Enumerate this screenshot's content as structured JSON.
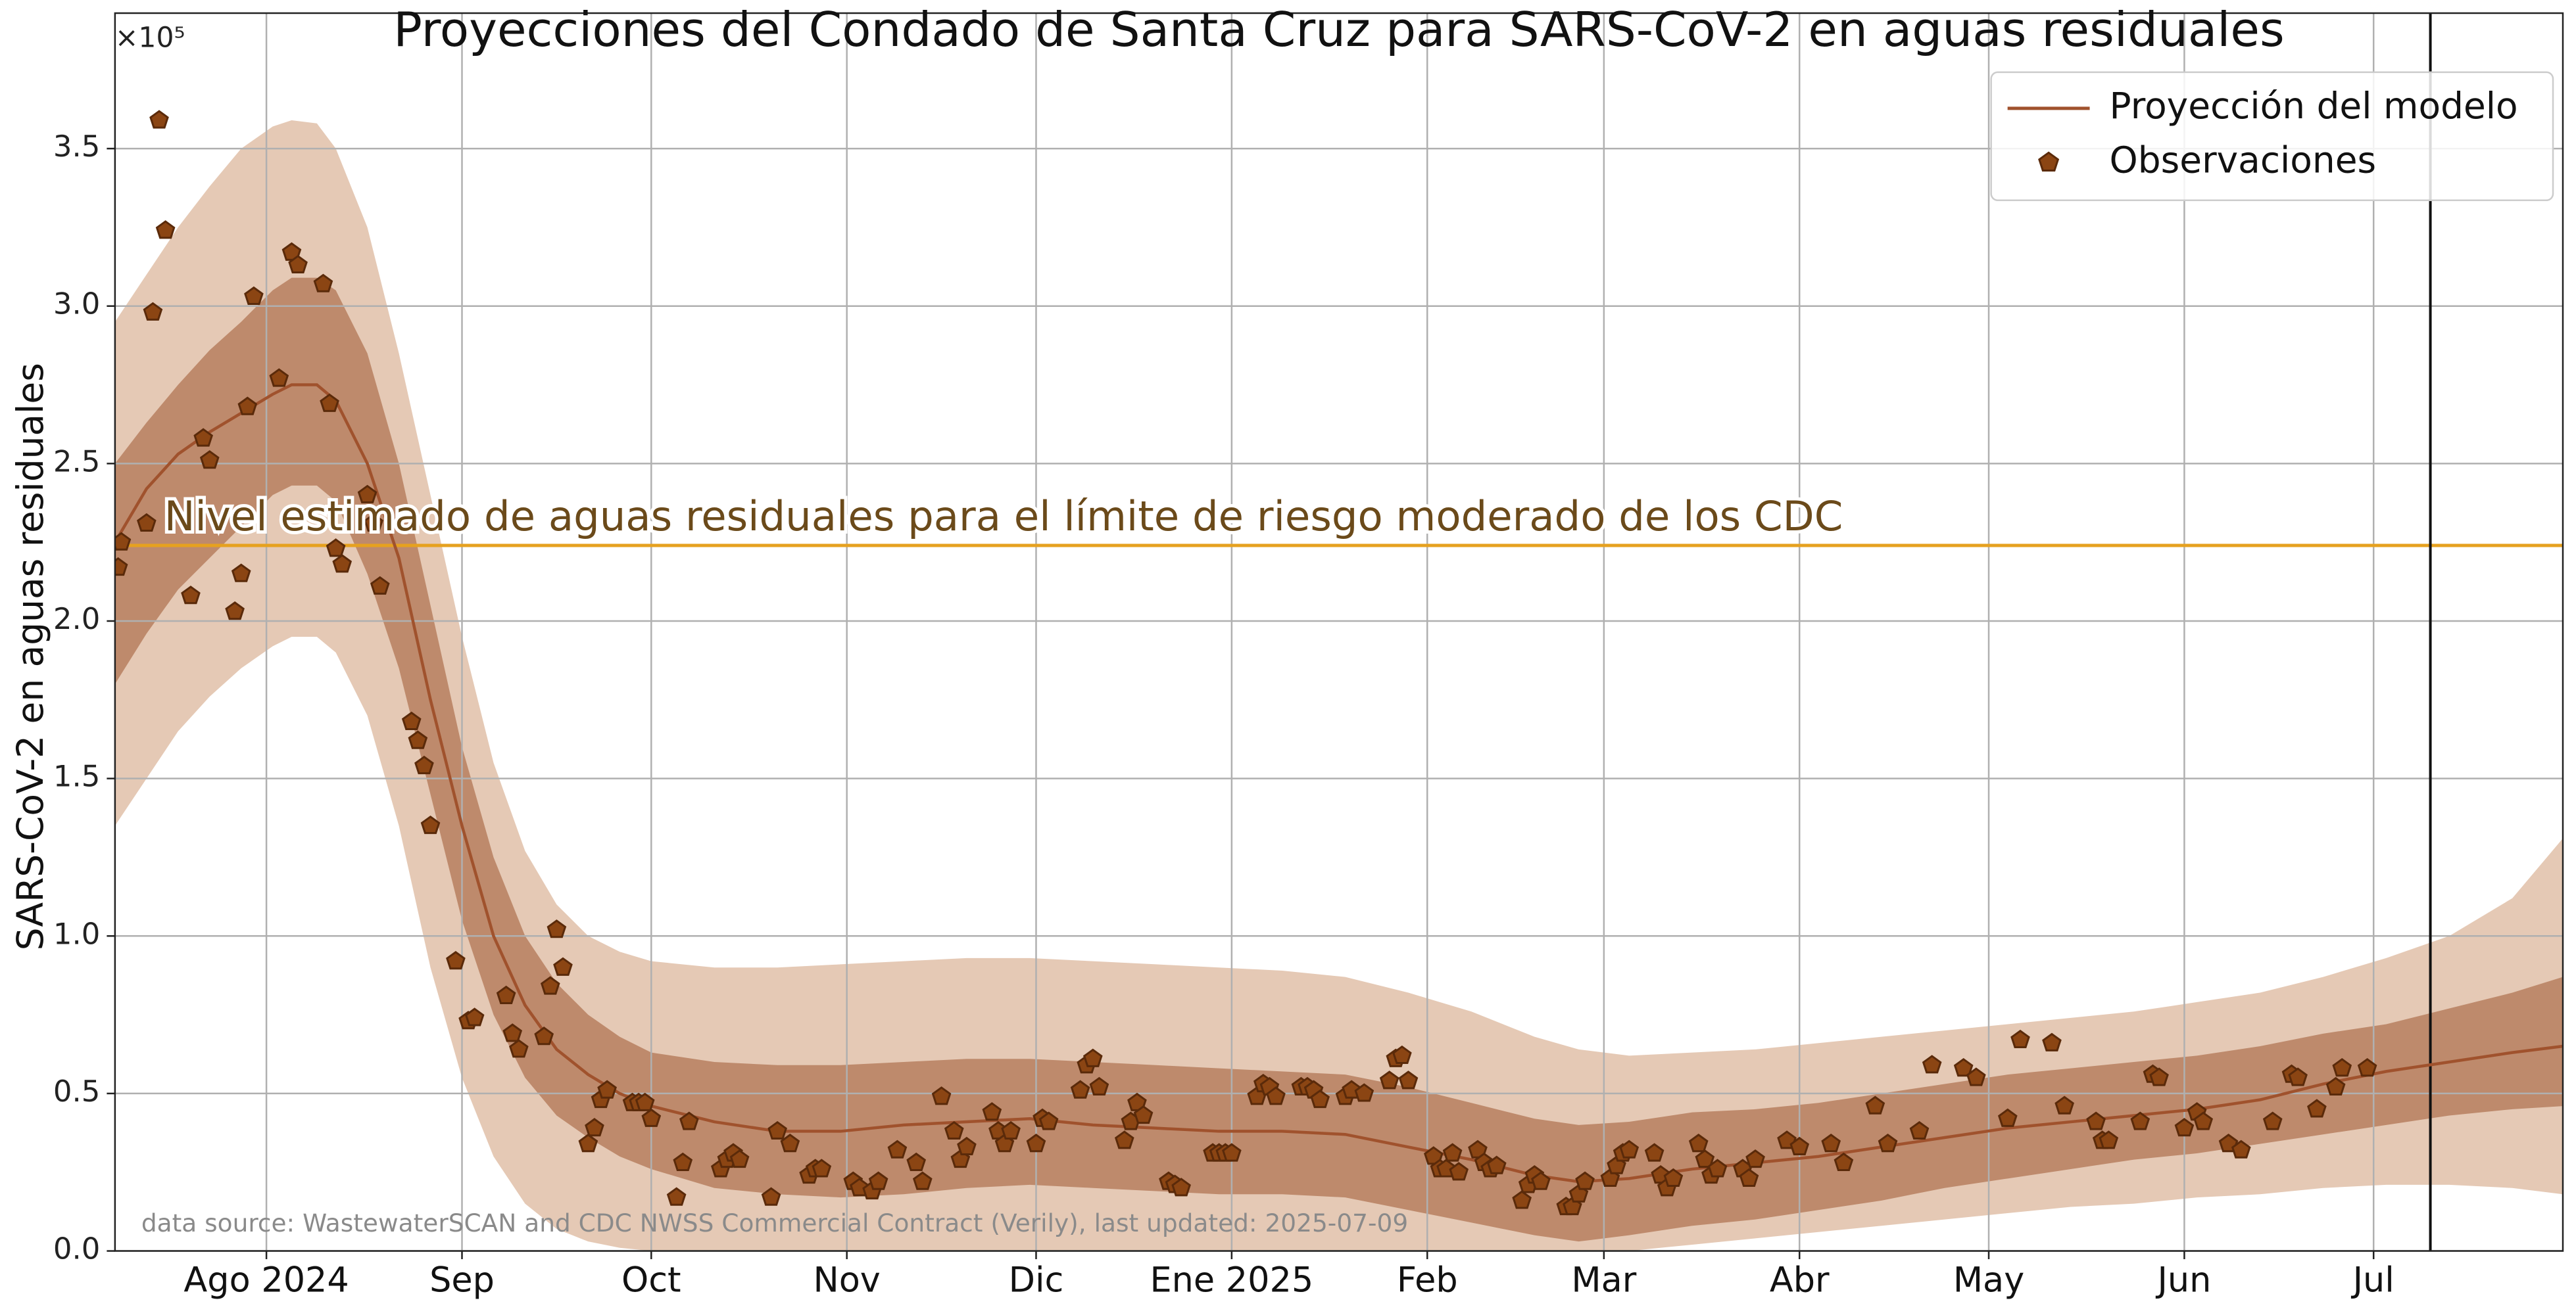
{
  "chart_data": {
    "type": "line",
    "title": "Proyecciones del Condado de Santa Cruz para SARS-CoV-2 en aguas residuales",
    "y_label": "SARS-CoV-2 en aguas residuales",
    "y_offset_label": "×10⁵",
    "annotation": "data source: WastewaterSCAN and CDC NWSS Commercial Contract (Verily), last updated: 2025-07-09",
    "xlim": [
      0,
      388
    ],
    "xticks": [
      {
        "value": 24,
        "label": "Ago 2024"
      },
      {
        "value": 55,
        "label": "Sep"
      },
      {
        "value": 85,
        "label": "Oct"
      },
      {
        "value": 116,
        "label": "Nov"
      },
      {
        "value": 146,
        "label": "Dic"
      },
      {
        "value": 177,
        "label": "Ene 2025"
      },
      {
        "value": 208,
        "label": "Feb"
      },
      {
        "value": 236,
        "label": "Mar"
      },
      {
        "value": 267,
        "label": "Abr"
      },
      {
        "value": 297,
        "label": "May"
      },
      {
        "value": 328,
        "label": "Jun"
      },
      {
        "value": 358,
        "label": "Jul"
      }
    ],
    "ylim": [
      0,
      3.93
    ],
    "yticks": [
      {
        "value": 0,
        "label": "0.0"
      },
      0.5,
      {
        "value": 1,
        "label": "1.0"
      },
      1.5,
      {
        "value": 2,
        "label": "2.0"
      },
      2.5,
      {
        "value": 3,
        "label": "3.0"
      },
      3.5
    ],
    "grid": true,
    "legend": "upper right",
    "threshold": {
      "value": 2.24,
      "label": "Nivel estimado de aguas residuales para el límite de riesgo moderado de los CDC",
      "color": "#e6a11f",
      "text_color": "#6b4a1a"
    },
    "vline": {
      "x": 367,
      "color": "#111111"
    },
    "bands": [
      {
        "color": "#e5c9b5",
        "upper": [
          2.95,
          3.1,
          3.25,
          3.38,
          3.5,
          3.57,
          3.59,
          3.58,
          3.5,
          3.25,
          2.85,
          2.4,
          1.95,
          1.55,
          1.27,
          1.1,
          1.0,
          0.95,
          0.92,
          0.9,
          0.9,
          0.91,
          0.92,
          0.93,
          0.93,
          0.92,
          0.91,
          0.9,
          0.89,
          0.87,
          0.82,
          0.76,
          0.68,
          0.64,
          0.62,
          0.63,
          0.64,
          0.66,
          0.68,
          0.7,
          0.72,
          0.74,
          0.76,
          0.79,
          0.82,
          0.87,
          0.93,
          1.0,
          1.12,
          1.31
        ],
        "lower": [
          1.35,
          1.5,
          1.65,
          1.76,
          1.85,
          1.92,
          1.95,
          1.95,
          1.9,
          1.7,
          1.35,
          0.9,
          0.55,
          0.3,
          0.15,
          0.07,
          0.03,
          0.01,
          0,
          0,
          0,
          0,
          0,
          0,
          0,
          0,
          0,
          0,
          0,
          0,
          0,
          0,
          0,
          0,
          0,
          0.02,
          0.04,
          0.06,
          0.08,
          0.1,
          0.12,
          0.14,
          0.15,
          0.17,
          0.18,
          0.2,
          0.21,
          0.21,
          0.2,
          0.18
        ]
      },
      {
        "color": "#be8a6c",
        "upper": [
          2.5,
          2.63,
          2.75,
          2.86,
          2.95,
          3.05,
          3.09,
          3.09,
          3.05,
          2.85,
          2.5,
          2.05,
          1.6,
          1.25,
          1.0,
          0.85,
          0.75,
          0.68,
          0.63,
          0.6,
          0.59,
          0.59,
          0.6,
          0.61,
          0.61,
          0.6,
          0.59,
          0.58,
          0.57,
          0.56,
          0.52,
          0.47,
          0.42,
          0.4,
          0.41,
          0.44,
          0.45,
          0.47,
          0.5,
          0.53,
          0.56,
          0.58,
          0.6,
          0.62,
          0.65,
          0.69,
          0.72,
          0.77,
          0.82,
          0.87
        ],
        "lower": [
          1.8,
          1.96,
          2.1,
          2.2,
          2.3,
          2.4,
          2.43,
          2.43,
          2.38,
          2.15,
          1.85,
          1.45,
          1.05,
          0.75,
          0.55,
          0.43,
          0.36,
          0.3,
          0.26,
          0.2,
          0.18,
          0.17,
          0.18,
          0.2,
          0.21,
          0.2,
          0.19,
          0.18,
          0.18,
          0.17,
          0.13,
          0.09,
          0.05,
          0.03,
          0.05,
          0.08,
          0.1,
          0.13,
          0.16,
          0.2,
          0.23,
          0.26,
          0.29,
          0.31,
          0.34,
          0.37,
          0.4,
          0.43,
          0.45,
          0.46
        ]
      }
    ],
    "series": [
      {
        "name": "Proyección del modelo",
        "type": "line",
        "color": "#a0522d",
        "x": [
          0,
          5,
          10,
          15,
          20,
          25,
          28,
          32,
          35,
          40,
          45,
          50,
          55,
          60,
          65,
          70,
          75,
          80,
          85,
          95,
          105,
          115,
          125,
          135,
          145,
          155,
          165,
          175,
          185,
          195,
          205,
          215,
          225,
          232,
          240,
          250,
          260,
          270,
          280,
          290,
          300,
          310,
          320,
          330,
          340,
          350,
          360,
          370,
          380,
          388
        ],
        "values": [
          2.25,
          2.42,
          2.53,
          2.6,
          2.66,
          2.72,
          2.75,
          2.75,
          2.7,
          2.5,
          2.2,
          1.75,
          1.35,
          1.0,
          0.78,
          0.64,
          0.56,
          0.5,
          0.46,
          0.41,
          0.38,
          0.38,
          0.4,
          0.41,
          0.42,
          0.4,
          0.39,
          0.38,
          0.38,
          0.37,
          0.33,
          0.29,
          0.24,
          0.22,
          0.23,
          0.26,
          0.28,
          0.3,
          0.33,
          0.36,
          0.39,
          0.41,
          0.43,
          0.45,
          0.48,
          0.53,
          0.57,
          0.6,
          0.63,
          0.65
        ]
      },
      {
        "name": "Observaciones",
        "type": "scatter",
        "color": "#8b4513",
        "edge_color": "#5a2a0a",
        "x": [
          0.5,
          1,
          5,
          6,
          7,
          8,
          12,
          14,
          15,
          19,
          20,
          21,
          22,
          26,
          28,
          29,
          33,
          34,
          35,
          36,
          40,
          41,
          42,
          47,
          48,
          49,
          50,
          54,
          56,
          57,
          62,
          63,
          64,
          68,
          69,
          70,
          71,
          75,
          76,
          77,
          78,
          82,
          83,
          84,
          85,
          89,
          90,
          91,
          96,
          97,
          98,
          99,
          104,
          105,
          107,
          110,
          111,
          112,
          117,
          118,
          120,
          121,
          124,
          127,
          128,
          131,
          133,
          134,
          135,
          139,
          140,
          141,
          142,
          146,
          147,
          148,
          153,
          154,
          155,
          156,
          160,
          161,
          162,
          163,
          167,
          168,
          169,
          174,
          175,
          176,
          177,
          181,
          182,
          183,
          184,
          188,
          189,
          190,
          191,
          195,
          196,
          198,
          202,
          203,
          204,
          205,
          209,
          210,
          211,
          212,
          213,
          216,
          217,
          218,
          219,
          223,
          224,
          225,
          226,
          230,
          231,
          232,
          233,
          237,
          238,
          239,
          240,
          244,
          245,
          246,
          247,
          251,
          252,
          253,
          254,
          258,
          259,
          260,
          265,
          267,
          272,
          274,
          279,
          281,
          286,
          288,
          293,
          295,
          300,
          302,
          307,
          309,
          314,
          315,
          316,
          321,
          323,
          324,
          328,
          330,
          331,
          335,
          337,
          342,
          345,
          346,
          349,
          352,
          353,
          357
        ],
        "values": [
          2.17,
          2.25,
          2.31,
          2.98,
          3.59,
          3.24,
          2.08,
          2.58,
          2.51,
          2.03,
          2.15,
          2.68,
          3.03,
          2.77,
          3.17,
          3.13,
          3.07,
          2.69,
          2.23,
          2.18,
          2.4,
          2.31,
          2.11,
          1.68,
          1.62,
          1.54,
          1.35,
          0.92,
          0.73,
          0.74,
          0.81,
          0.69,
          0.64,
          0.68,
          0.84,
          1.02,
          0.9,
          0.34,
          0.39,
          0.48,
          0.51,
          0.47,
          0.47,
          0.47,
          0.42,
          0.17,
          0.28,
          0.41,
          0.26,
          0.29,
          0.31,
          0.29,
          0.17,
          0.38,
          0.34,
          0.24,
          0.26,
          0.26,
          0.22,
          0.2,
          0.19,
          0.22,
          0.32,
          0.28,
          0.22,
          0.49,
          0.38,
          0.29,
          0.33,
          0.44,
          0.38,
          0.34,
          0.38,
          0.34,
          0.42,
          0.41,
          0.51,
          0.59,
          0.61,
          0.52,
          0.35,
          0.41,
          0.47,
          0.43,
          0.22,
          0.21,
          0.2,
          0.31,
          0.31,
          0.31,
          0.31,
          0.49,
          0.53,
          0.52,
          0.49,
          0.52,
          0.52,
          0.51,
          0.48,
          0.49,
          0.51,
          0.5,
          0.54,
          0.61,
          0.62,
          0.54,
          0.3,
          0.26,
          0.26,
          0.31,
          0.25,
          0.32,
          0.28,
          0.26,
          0.27,
          0.16,
          0.21,
          0.24,
          0.22,
          0.14,
          0.14,
          0.18,
          0.22,
          0.23,
          0.27,
          0.31,
          0.32,
          0.31,
          0.24,
          0.2,
          0.23,
          0.34,
          0.29,
          0.24,
          0.26,
          0.26,
          0.23,
          0.29,
          0.35,
          0.33,
          0.34,
          0.28,
          0.46,
          0.34,
          0.38,
          0.59,
          0.58,
          0.55,
          0.42,
          0.67,
          0.66,
          0.46,
          0.41,
          0.35,
          0.35,
          0.41,
          0.56,
          0.55,
          0.39,
          0.44,
          0.41,
          0.34,
          0.32,
          0.41,
          0.56,
          0.55,
          0.45,
          0.52,
          0.58,
          0.58
        ]
      }
    ]
  }
}
